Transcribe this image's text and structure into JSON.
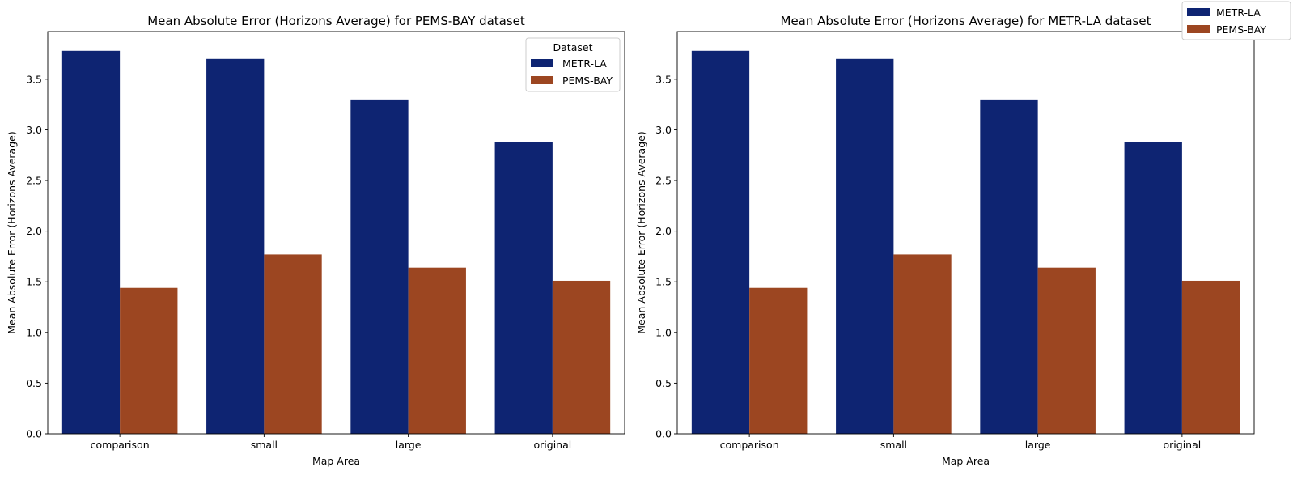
{
  "colors": {
    "metr_la": "#0e2472",
    "pems_bay": "#9c4621",
    "axis": "#000000",
    "background": "#ffffff"
  },
  "figure_legend": {
    "placement": "top-right",
    "entries": [
      {
        "label": "METR-LA",
        "color": "#0e2472"
      },
      {
        "label": "PEMS-BAY",
        "color": "#9c4621"
      }
    ]
  },
  "chart_data": [
    {
      "type": "bar",
      "title": "Mean Absolute Error (Horizons Average) for PEMS-BAY dataset",
      "xlabel": "Map Area",
      "ylabel": "Mean Absolute Error (Horizons Average)",
      "categories": [
        "comparison",
        "small",
        "large",
        "original"
      ],
      "series": [
        {
          "name": "METR-LA",
          "color": "#0e2472",
          "values": [
            3.78,
            3.7,
            3.3,
            2.88
          ]
        },
        {
          "name": "PEMS-BAY",
          "color": "#9c4621",
          "values": [
            1.44,
            1.77,
            1.64,
            1.51
          ]
        }
      ],
      "yticks": [
        "0.0",
        "0.5",
        "1.0",
        "1.5",
        "2.0",
        "2.5",
        "3.0",
        "3.5"
      ],
      "ylim": [
        0,
        3.97
      ],
      "grid": false,
      "legend": {
        "title": "Dataset",
        "placement": "top-right"
      }
    },
    {
      "type": "bar",
      "title": "Mean Absolute Error (Horizons Average) for METR-LA dataset",
      "xlabel": "Map Area",
      "ylabel": "Mean Absolute Error (Horizons Average)",
      "categories": [
        "comparison",
        "small",
        "large",
        "original"
      ],
      "series": [
        {
          "name": "METR-LA",
          "color": "#0e2472",
          "values": [
            3.78,
            3.7,
            3.3,
            2.88
          ]
        },
        {
          "name": "PEMS-BAY",
          "color": "#9c4621",
          "values": [
            1.44,
            1.77,
            1.64,
            1.51
          ]
        }
      ],
      "yticks": [
        "0.0",
        "0.5",
        "1.0",
        "1.5",
        "2.0",
        "2.5",
        "3.0",
        "3.5"
      ],
      "ylim": [
        0,
        3.97
      ],
      "grid": false,
      "legend": null
    }
  ]
}
